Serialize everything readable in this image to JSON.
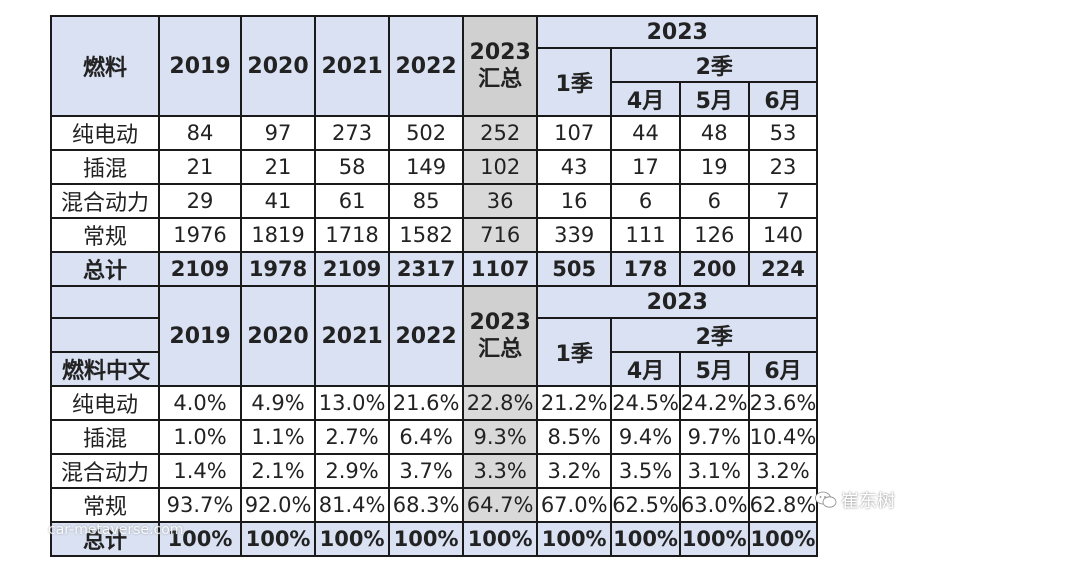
{
  "table1": {
    "corner": "燃料",
    "years": [
      "2019",
      "2020",
      "2021",
      "2022"
    ],
    "sum_year": "2023",
    "sum_label": "汇总",
    "group_year": "2023",
    "q1": "1季",
    "q2": "2季",
    "months": [
      "4月",
      "5月",
      "6月"
    ],
    "rows": [
      {
        "label": "纯电动",
        "values": [
          "84",
          "97",
          "273",
          "502",
          "252",
          "107",
          "44",
          "48",
          "53"
        ]
      },
      {
        "label": "插混",
        "values": [
          "21",
          "21",
          "58",
          "149",
          "102",
          "43",
          "17",
          "19",
          "23"
        ]
      },
      {
        "label": "混合动力",
        "values": [
          "29",
          "41",
          "61",
          "85",
          "36",
          "16",
          "6",
          "6",
          "7"
        ]
      },
      {
        "label": "常规",
        "values": [
          "1976",
          "1819",
          "1718",
          "1582",
          "716",
          "339",
          "111",
          "126",
          "140"
        ]
      }
    ],
    "total": {
      "label": "总计",
      "values": [
        "2109",
        "1978",
        "2109",
        "2317",
        "1107",
        "505",
        "178",
        "200",
        "224"
      ]
    }
  },
  "table2": {
    "corner": "燃料中文",
    "years": [
      "2019",
      "2020",
      "2021",
      "2022"
    ],
    "sum_year": "2023",
    "sum_label": "汇总",
    "group_year": "2023",
    "q1": "1季",
    "q2": "2季",
    "months": [
      "4月",
      "5月",
      "6月"
    ],
    "rows": [
      {
        "label": "纯电动",
        "values": [
          "4.0%",
          "4.9%",
          "13.0%",
          "21.6%",
          "22.8%",
          "21.2%",
          "24.5%",
          "24.2%",
          "23.6%"
        ]
      },
      {
        "label": "插混",
        "values": [
          "1.0%",
          "1.1%",
          "2.7%",
          "6.4%",
          "9.3%",
          "8.5%",
          "9.4%",
          "9.7%",
          "10.4%"
        ]
      },
      {
        "label": "混合动力",
        "values": [
          "1.4%",
          "2.1%",
          "2.9%",
          "3.7%",
          "3.3%",
          "3.2%",
          "3.5%",
          "3.1%",
          "3.2%"
        ]
      },
      {
        "label": "常规",
        "values": [
          "93.7%",
          "92.0%",
          "81.4%",
          "68.3%",
          "64.7%",
          "67.0%",
          "62.5%",
          "63.0%",
          "62.8%"
        ]
      }
    ],
    "total": {
      "label": "总计",
      "values": [
        "100%",
        "100%",
        "100%",
        "100%",
        "100%",
        "100%",
        "100%",
        "100%",
        "100%"
      ]
    }
  },
  "watermarks": {
    "left": "car-metaverse.com",
    "right": "崔东树"
  },
  "colors": {
    "header_bg": "#d9e1f2",
    "summary_bg": "#d9d9d9",
    "border": "#1a1a1a"
  }
}
